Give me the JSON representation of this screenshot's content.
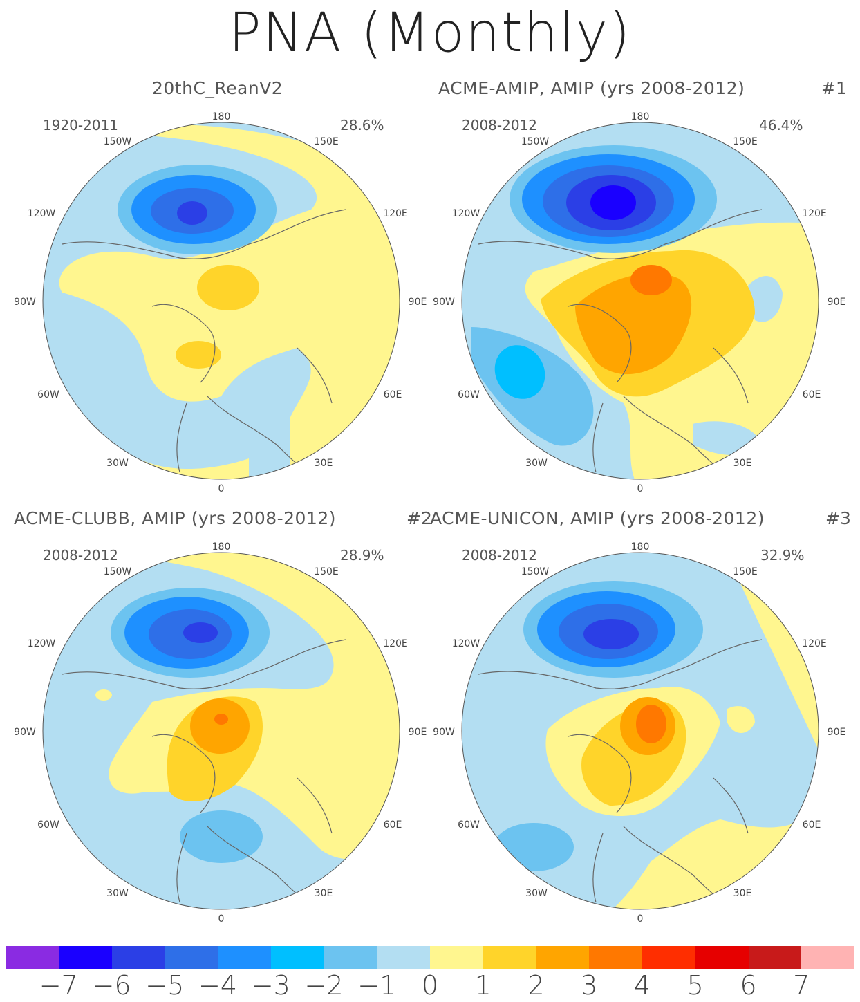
{
  "title": "PNA (Monthly)",
  "panels": [
    {
      "title": "20thC_ReanV2",
      "number": "",
      "years": "1920-2011",
      "percent": "28.6%"
    },
    {
      "title": "ACME-AMIP, AMIP (yrs 2008-2012)",
      "number": "#1",
      "years": "2008-2012",
      "percent": "46.4%"
    },
    {
      "title": "ACME-CLUBB, AMIP (yrs 2008-2012)",
      "number": "#2",
      "years": "2008-2012",
      "percent": "28.9%"
    },
    {
      "title": "ACME-UNICON, AMIP (yrs 2008-2012)",
      "number": "#3",
      "years": "2008-2012",
      "percent": "32.9%"
    }
  ],
  "lon_labels": {
    "top": "180",
    "bottom": "0",
    "lon150w": "150W",
    "lon150e": "150E",
    "lon120w": "120W",
    "lon120e": "120E",
    "lon90w": "90W",
    "lon90e": "90E",
    "lon60w": "60W",
    "lon60e": "60E",
    "lon30w": "30W",
    "lon30e": "30E"
  },
  "colorbar": {
    "colors": [
      "#8a2be2",
      "#1a00ff",
      "#2b3fe6",
      "#2e6fe8",
      "#1e90ff",
      "#00bfff",
      "#6cc3f0",
      "#b3def2",
      "#fff68f",
      "#ffd42a",
      "#ffa500",
      "#ff7800",
      "#ff2e00",
      "#e60000",
      "#c81a1a",
      "#ffb3b3"
    ],
    "labels": [
      "−7",
      "−6",
      "−5",
      "−4",
      "−3",
      "−2",
      "−1",
      "0",
      "1",
      "2",
      "3",
      "4",
      "5",
      "6",
      "7"
    ]
  }
}
